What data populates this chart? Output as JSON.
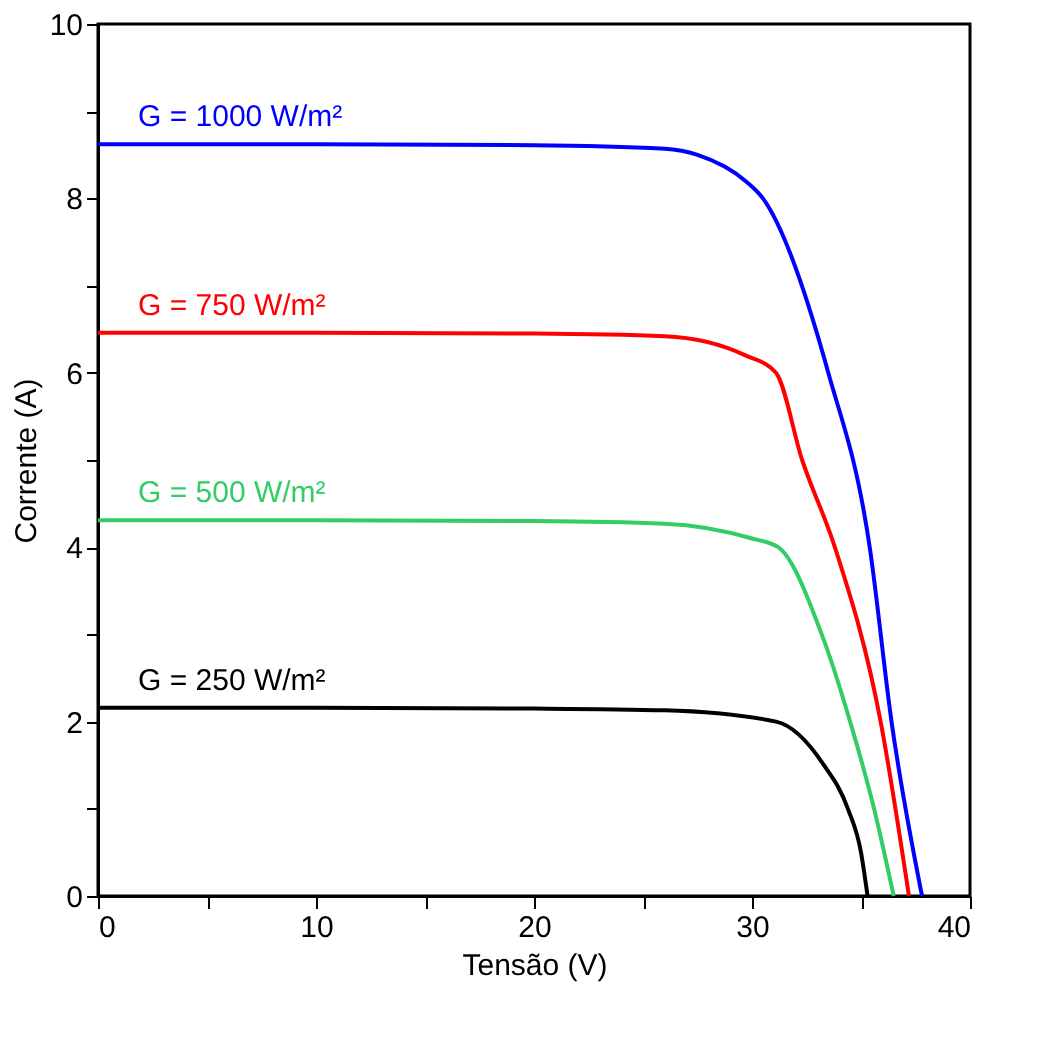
{
  "chart_data": {
    "type": "line",
    "xlabel": "Tensão (V)",
    "ylabel": "Corrente (A)",
    "xlim": [
      0,
      40
    ],
    "ylim": [
      0,
      10
    ],
    "xticks": [
      0,
      {
        "value": 5,
        "label": null
      },
      10,
      {
        "value": 15,
        "label": null
      },
      20,
      {
        "value": 25,
        "label": null
      },
      30,
      {
        "value": 35,
        "label": null
      },
      40
    ],
    "yticks": [
      0,
      {
        "value": 1,
        "label": null
      },
      2,
      {
        "value": 3,
        "label": null
      },
      4,
      {
        "value": 5,
        "label": null
      },
      6,
      {
        "value": 7,
        "label": null
      },
      8,
      {
        "value": 9,
        "label": null
      },
      10
    ],
    "grid": false,
    "legend": false,
    "marker": "none",
    "line_style": "solid",
    "series": [
      {
        "name": "G = 1000 W/m²",
        "color": "#0000ff",
        "x": [
          0,
          10,
          20,
          26,
          27.5,
          29.7,
          30.5,
          33.5,
          35.4,
          36.4,
          37.8
        ],
        "values": [
          8.62,
          8.62,
          8.61,
          8.57,
          8.5,
          8.2,
          8,
          6,
          4,
          2,
          0
        ]
      },
      {
        "name": "G = 750 W/m²",
        "color": "#ff0000",
        "x": [
          0,
          10,
          20,
          26,
          29.7,
          31.1,
          32.3,
          33.8,
          35.9,
          37.2
        ],
        "values": [
          6.46,
          6.46,
          6.45,
          6.42,
          6.2,
          6,
          5,
          4,
          2,
          0
        ]
      },
      {
        "name": "G = 500 W/m²",
        "color": "#33cc66",
        "x": [
          0,
          10,
          20,
          26,
          30,
          31.2,
          33.2,
          34.5,
          35.6,
          36.5
        ],
        "values": [
          4.31,
          4.31,
          4.3,
          4.27,
          4.1,
          4,
          3,
          2,
          1,
          0
        ]
      },
      {
        "name": "G = 250 W/m²",
        "color": "#000000",
        "x": [
          0,
          10,
          20,
          26,
          31.1,
          33.3,
          34.4,
          35,
          35.3
        ],
        "values": [
          2.16,
          2.16,
          2.15,
          2.13,
          2,
          1.5,
          1,
          0.5,
          0
        ]
      }
    ]
  }
}
